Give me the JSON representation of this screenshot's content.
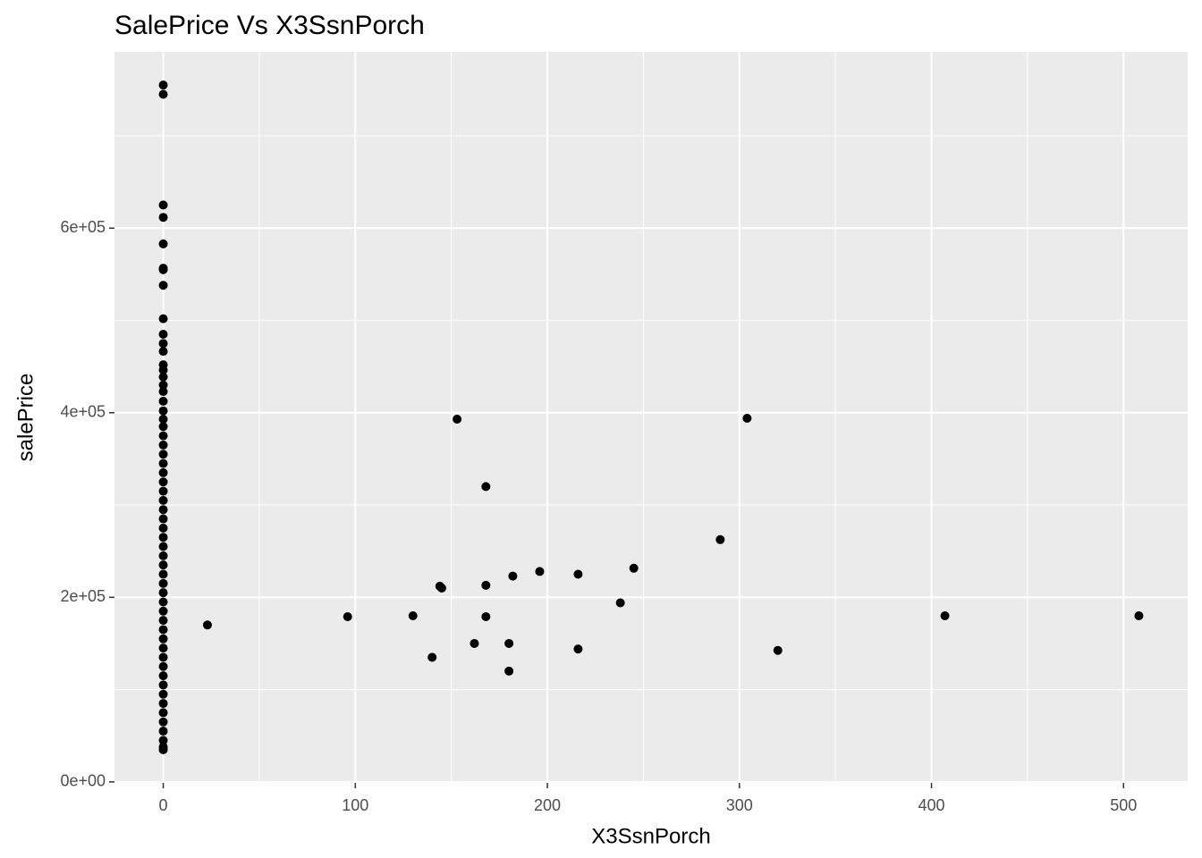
{
  "chart_data": {
    "type": "scatter",
    "title": "SalePrice Vs X3SsnPorch",
    "x_label": "X3SsnPorch",
    "y_label": "salePrice",
    "color": "#000000",
    "grid": true,
    "background": "#ebebeb",
    "xlim": [
      -25.4,
      533.4
    ],
    "ylim": [
      -1105,
      791005
    ],
    "xticks": [
      0,
      100,
      200,
      300,
      400,
      500
    ],
    "x_minor_ticks": [
      50,
      150,
      250,
      350,
      450
    ],
    "yticks": [
      {
        "value": 0,
        "label": "0e+00"
      },
      {
        "value": 200000,
        "label": "2e+05"
      },
      {
        "value": 400000,
        "label": "4e+05"
      },
      {
        "value": 600000,
        "label": "6e+05"
      }
    ],
    "y_minor_ticks": [
      100000,
      300000,
      500000,
      700000
    ],
    "x": [
      0,
      0,
      0,
      0,
      0,
      0,
      0,
      0,
      0,
      0,
      0,
      0,
      0,
      0,
      0,
      0,
      0,
      0,
      0,
      0,
      0,
      0,
      0,
      0,
      0,
      0,
      0,
      0,
      0,
      0,
      0,
      0,
      0,
      0,
      0,
      0,
      0,
      0,
      0,
      0,
      0,
      0,
      0,
      0,
      0,
      0,
      0,
      0,
      0,
      0,
      0,
      0,
      0,
      0,
      0,
      0,
      0,
      23,
      96,
      130,
      140,
      144,
      145,
      153,
      162,
      168,
      168,
      168,
      180,
      180,
      182,
      196,
      216,
      216,
      238,
      245,
      290,
      304,
      320,
      407,
      508
    ],
    "y": [
      34900,
      37900,
      45000,
      55000,
      65000,
      75000,
      85000,
      95000,
      105000,
      115000,
      125000,
      135000,
      145000,
      155000,
      165000,
      175000,
      185000,
      195000,
      205000,
      215000,
      225000,
      235000,
      245000,
      255000,
      265000,
      275000,
      285000,
      295000,
      305000,
      315000,
      325000,
      335000,
      345000,
      355000,
      365000,
      375000,
      385000,
      393000,
      402000,
      412500,
      423000,
      430000,
      438780,
      446261,
      451950,
      466500,
      475000,
      485000,
      501837,
      538000,
      555000,
      556581,
      582933,
      611657,
      625000,
      745000,
      755000,
      170000,
      179000,
      180000,
      135000,
      212000,
      210000,
      393000,
      150000,
      320000,
      213000,
      179000,
      150000,
      120000,
      223000,
      228000,
      225000,
      144000,
      194000,
      231500,
      262500,
      394000,
      142500,
      180000,
      180000
    ]
  }
}
